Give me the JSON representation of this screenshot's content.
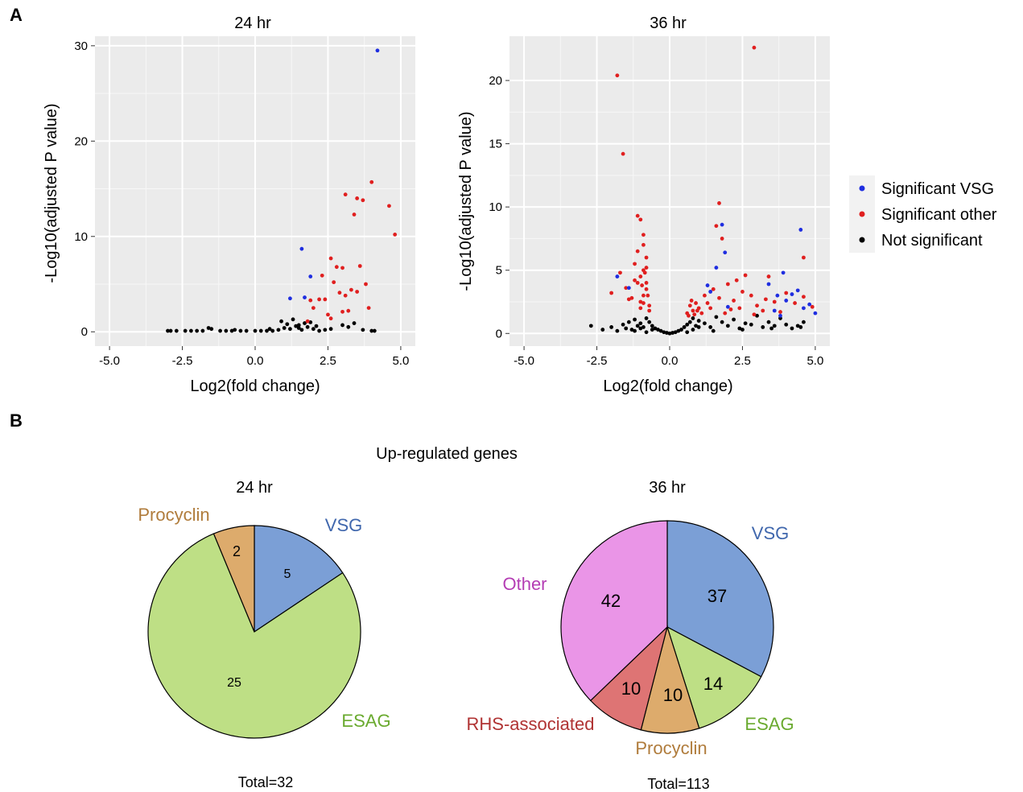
{
  "figure": {
    "panel_a_letter": "A",
    "panel_b_letter": "B"
  },
  "chart_data": [
    {
      "type": "scatter",
      "title": "24 hr",
      "xlabel": "Log2(fold change)",
      "ylabel": "-Log10(adjusted P value)",
      "xlim": [
        -5.5,
        5.5
      ],
      "ylim": [
        -1.5,
        31
      ],
      "xticks": [
        -5.0,
        -2.5,
        0.0,
        2.5,
        5.0
      ],
      "xtick_labels": [
        "-5.0",
        "-2.5",
        "0.0",
        "2.5",
        "5.0"
      ],
      "yticks": [
        0,
        10,
        20,
        30
      ],
      "ytick_labels": [
        "0",
        "10",
        "20",
        "30"
      ],
      "grid": true,
      "background": "#ebebeb",
      "series": [
        {
          "name": "Significant VSG",
          "color": "#1f2ee0",
          "x": [
            4.2,
            1.6,
            1.9,
            1.2,
            1.7
          ],
          "y": [
            29.5,
            8.7,
            5.8,
            3.5,
            3.6
          ]
        },
        {
          "name": "Significant other",
          "color": "#e01f1f",
          "x": [
            4.0,
            3.1,
            3.5,
            3.4,
            3.7,
            4.6,
            4.8,
            2.6,
            2.8,
            3.0,
            3.3,
            3.6,
            2.2,
            2.4,
            2.0,
            2.7,
            3.1,
            3.5,
            2.9,
            1.9,
            2.3,
            3.8,
            3.2,
            3.0,
            2.6,
            2.5,
            3.9,
            1.8
          ],
          "y": [
            15.7,
            14.4,
            14.0,
            12.3,
            13.8,
            13.2,
            10.2,
            7.7,
            6.8,
            6.7,
            4.4,
            6.9,
            3.4,
            3.4,
            2.5,
            5.2,
            3.8,
            4.2,
            4.1,
            3.3,
            5.9,
            5.0,
            2.2,
            2.1,
            1.4,
            1.8,
            2.5,
            1.1
          ]
        },
        {
          "name": "Not significant",
          "color": "#000000",
          "x": [
            -3.0,
            -2.9,
            -2.7,
            -2.4,
            -2.2,
            -2.0,
            -1.8,
            -1.5,
            -1.2,
            -1.0,
            -0.8,
            -0.5,
            -0.3,
            0.0,
            0.2,
            0.4,
            0.6,
            0.8,
            1.0,
            1.2,
            1.4,
            1.6,
            1.8,
            2.0,
            2.2,
            2.4,
            2.6,
            3.0,
            3.2,
            3.4,
            3.7,
            4.0,
            4.1,
            0.9,
            1.1,
            1.3,
            1.5,
            1.7,
            1.9,
            2.1,
            -1.6,
            -0.7,
            0.5,
            1.5
          ],
          "y": [
            0.1,
            0.1,
            0.1,
            0.1,
            0.1,
            0.1,
            0.1,
            0.3,
            0.1,
            0.1,
            0.1,
            0.1,
            0.1,
            0.1,
            0.1,
            0.1,
            0.1,
            0.2,
            0.4,
            0.3,
            0.6,
            0.2,
            0.5,
            0.3,
            0.1,
            0.2,
            0.3,
            0.7,
            0.5,
            0.9,
            0.2,
            0.1,
            0.1,
            1.1,
            0.8,
            1.3,
            0.4,
            0.9,
            1.0,
            0.6,
            0.4,
            0.2,
            0.3,
            0.7
          ]
        }
      ]
    },
    {
      "type": "scatter",
      "title": "36 hr",
      "xlabel": "Log2(fold change)",
      "ylabel": "-Log10(adjusted P value)",
      "xlim": [
        -5.5,
        5.5
      ],
      "ylim": [
        -1.0,
        23.5
      ],
      "xticks": [
        -5.0,
        -2.5,
        0.0,
        2.5,
        5.0
      ],
      "xtick_labels": [
        "-5.0",
        "-2.5",
        "0.0",
        "2.5",
        "5.0"
      ],
      "yticks": [
        0,
        5,
        10,
        15,
        20
      ],
      "ytick_labels": [
        "0",
        "5",
        "10",
        "15",
        "20"
      ],
      "grid": true,
      "background": "#ebebeb",
      "series": [
        {
          "name": "Significant VSG",
          "color": "#1f2ee0",
          "x": [
            1.8,
            1.9,
            1.6,
            1.3,
            4.5,
            3.9,
            3.4,
            3.7,
            4.0,
            4.2,
            4.8,
            5.0,
            3.6,
            4.4,
            -1.8,
            -1.4,
            1.4,
            2.0,
            3.8,
            4.6
          ],
          "y": [
            8.6,
            6.4,
            5.2,
            3.8,
            8.2,
            4.8,
            3.9,
            3.0,
            2.6,
            3.1,
            2.3,
            1.6,
            1.8,
            3.4,
            4.5,
            3.6,
            3.3,
            2.1,
            1.4,
            2.0
          ]
        },
        {
          "name": "Significant other",
          "color": "#e01f1f",
          "x": [
            2.9,
            -1.8,
            -1.6,
            1.7,
            1.6,
            1.8,
            4.6,
            -1.1,
            -1.0,
            -0.9,
            -0.8,
            -1.2,
            -0.9,
            -1.0,
            -1.1,
            -0.8,
            -0.9,
            -1.3,
            -1.0,
            -1.1,
            -0.9,
            -0.8,
            -1.2,
            -1.5,
            -1.4,
            -1.7,
            -2.0,
            -0.7,
            -0.75,
            -0.8,
            -0.85,
            -0.9,
            -0.95,
            -1.0,
            -0.7,
            0.6,
            0.7,
            0.8,
            0.9,
            1.0,
            1.1,
            0.65,
            0.75,
            0.85,
            0.95,
            1.2,
            1.3,
            1.4,
            1.5,
            1.7,
            2.0,
            2.2,
            2.4,
            2.6,
            2.8,
            3.0,
            3.2,
            3.4,
            3.6,
            3.8,
            4.0,
            4.3,
            4.6,
            4.9,
            2.1,
            2.5,
            2.9,
            3.3,
            1.9,
            2.3
          ],
          "y": [
            22.6,
            20.4,
            14.2,
            10.3,
            8.5,
            7.5,
            6.0,
            9.3,
            9.0,
            7.0,
            6.0,
            5.5,
            5.0,
            4.5,
            4.0,
            3.5,
            3.0,
            2.8,
            2.5,
            6.5,
            7.8,
            5.2,
            4.2,
            3.6,
            2.7,
            4.8,
            3.2,
            2.2,
            3.0,
            4.0,
            4.8,
            2.4,
            3.8,
            2.0,
            1.8,
            1.6,
            2.2,
            1.8,
            2.4,
            2.0,
            1.6,
            1.4,
            2.6,
            1.5,
            1.8,
            3.0,
            2.4,
            2.0,
            3.5,
            2.8,
            3.9,
            2.6,
            2.0,
            4.6,
            3.0,
            2.2,
            1.8,
            4.5,
            2.5,
            1.7,
            3.2,
            2.4,
            2.9,
            2.1,
            1.9,
            3.3,
            1.5,
            2.7,
            1.6,
            4.2
          ]
        },
        {
          "name": "Not significant",
          "color": "#000000",
          "x": [
            -2.7,
            -2.3,
            -2.0,
            -1.8,
            -1.6,
            -1.5,
            -1.4,
            -1.3,
            -1.2,
            -1.1,
            -1.0,
            -0.9,
            -0.8,
            -0.7,
            -0.6,
            -0.5,
            -0.4,
            -0.3,
            -0.2,
            -0.1,
            0.0,
            0.1,
            0.2,
            0.3,
            0.4,
            0.5,
            0.6,
            0.7,
            0.8,
            0.9,
            1.0,
            1.2,
            1.4,
            1.6,
            1.8,
            2.0,
            2.2,
            2.4,
            2.6,
            2.8,
            3.0,
            3.2,
            3.4,
            3.6,
            3.8,
            4.0,
            4.2,
            4.4,
            4.6,
            -1.2,
            -1.0,
            -0.8,
            -0.6,
            0.6,
            0.8,
            1.0,
            1.5,
            2.5,
            3.5,
            4.5
          ],
          "y": [
            0.6,
            0.3,
            0.5,
            0.2,
            0.7,
            0.4,
            0.9,
            0.3,
            1.1,
            0.6,
            0.8,
            0.5,
            1.2,
            0.9,
            0.6,
            0.4,
            0.3,
            0.2,
            0.1,
            0.05,
            0.0,
            0.05,
            0.1,
            0.2,
            0.3,
            0.5,
            0.7,
            0.9,
            1.2,
            0.6,
            1.0,
            0.8,
            0.5,
            1.3,
            0.9,
            0.6,
            1.1,
            0.4,
            0.8,
            0.7,
            1.4,
            0.5,
            0.9,
            0.6,
            1.2,
            0.7,
            0.4,
            0.6,
            0.9,
            0.2,
            0.4,
            0.1,
            0.3,
            0.1,
            0.3,
            0.5,
            0.2,
            0.3,
            0.4,
            0.5
          ]
        }
      ]
    },
    {
      "type": "pie",
      "title": "24 hr",
      "labels": [
        "VSG",
        "ESAG",
        "Procyclin"
      ],
      "values": [
        5,
        25,
        2
      ],
      "value_labels": [
        "5",
        "25",
        "2"
      ],
      "colors": [
        "#7b9fd6",
        "#bedf85",
        "#ddab6c"
      ],
      "label_colors": [
        "#4067ad",
        "#6aaa2f",
        "#b07c3c"
      ],
      "total_label": "Total=32"
    },
    {
      "type": "pie",
      "title": "36 hr",
      "labels": [
        "VSG",
        "ESAG",
        "Procyclin",
        "RHS-associated",
        "Other"
      ],
      "values": [
        37,
        14,
        10,
        10,
        42
      ],
      "value_labels": [
        "37",
        "14",
        "10",
        "10",
        "42"
      ],
      "colors": [
        "#7b9fd6",
        "#bedf85",
        "#ddab6c",
        "#de7474",
        "#ea95e7"
      ],
      "label_colors": [
        "#4067ad",
        "#6aaa2f",
        "#b07c3c",
        "#b03333",
        "#b43db4"
      ],
      "total_label": "Total=113"
    }
  ],
  "legend": {
    "entries": [
      {
        "label": "Significant VSG",
        "color": "#1f2ee0"
      },
      {
        "label": "Significant other",
        "color": "#e01f1f"
      },
      {
        "label": "Not significant",
        "color": "#000000"
      }
    ]
  },
  "pie_section": {
    "heading": "Up-regulated genes"
  }
}
